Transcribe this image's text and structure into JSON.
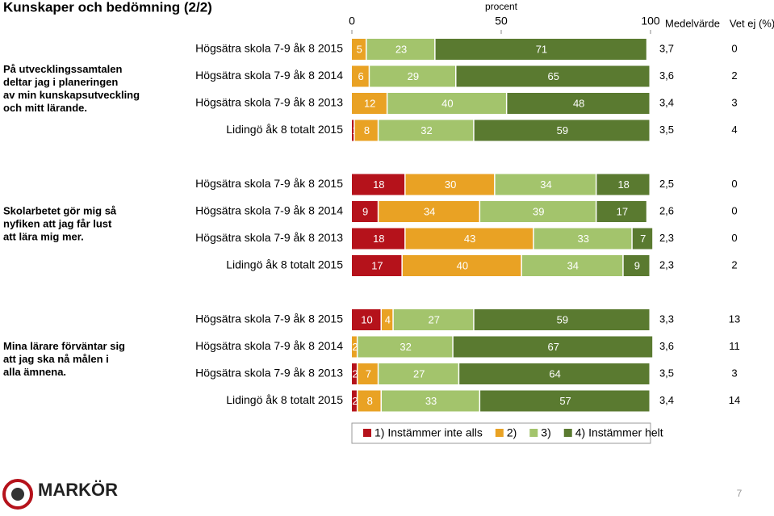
{
  "chart_data": {
    "type": "stacked-bar",
    "title": "Kunskaper och bedömning (2/2)",
    "xlabel": "procent",
    "xlim": [
      0,
      100
    ],
    "xticks": [
      0,
      50,
      100
    ],
    "mean_header": "Medelvärde",
    "unknown_header": "Vet ej (%)",
    "series": [
      {
        "name": "1) Instämmer inte alls",
        "color": "#b5121b"
      },
      {
        "name": "2)",
        "color": "#e9a224"
      },
      {
        "name": "3)",
        "color": "#a3c46c"
      },
      {
        "name": "4) Instämmer helt",
        "color": "#5a7a30"
      }
    ],
    "groups": [
      {
        "question": "På utvecklingssamtalen deltar jag i planeringen av min kunskapsutveckling och mitt lärande.",
        "categories": [
          "Högsätra skola 7-9 åk 8 2015",
          "Högsätra skola 7-9 åk 8 2014",
          "Högsätra skola 7-9 åk 8 2013",
          "Lidingö åk 8 totalt 2015"
        ],
        "values": [
          [
            0,
            5,
            23,
            71
          ],
          [
            0,
            6,
            29,
            65
          ],
          [
            0,
            12,
            40,
            48
          ],
          [
            1,
            8,
            32,
            59
          ]
        ],
        "means": [
          3.7,
          3.6,
          3.4,
          3.5
        ],
        "mean_labels": [
          "3,7",
          "3,6",
          "3,4",
          "3,5"
        ],
        "unknown": [
          0,
          2,
          3,
          4
        ]
      },
      {
        "question": "Skolarbetet gör mig så nyfiken att jag får lust att lära mig mer.",
        "categories": [
          "Högsätra skola 7-9 åk 8 2015",
          "Högsätra skola 7-9 åk 8 2014",
          "Högsätra skola 7-9 åk 8 2013",
          "Lidingö åk 8 totalt 2015"
        ],
        "values": [
          [
            18,
            30,
            34,
            18
          ],
          [
            9,
            34,
            39,
            17
          ],
          [
            18,
            43,
            33,
            7
          ],
          [
            17,
            40,
            34,
            9
          ]
        ],
        "means": [
          2.5,
          2.6,
          2.3,
          2.3
        ],
        "mean_labels": [
          "2,5",
          "2,6",
          "2,3",
          "2,3"
        ],
        "unknown": [
          0,
          0,
          0,
          2
        ]
      },
      {
        "question": "Mina lärare förväntar sig att jag ska nå målen i alla ämnena.",
        "categories": [
          "Högsätra skola 7-9 åk 8 2015",
          "Högsätra skola 7-9 åk 8 2014",
          "Högsätra skola 7-9 åk 8 2013",
          "Lidingö åk 8 totalt 2015"
        ],
        "values": [
          [
            10,
            4,
            27,
            59
          ],
          [
            0,
            2,
            32,
            67
          ],
          [
            2,
            7,
            27,
            64
          ],
          [
            2,
            8,
            33,
            57
          ]
        ],
        "means": [
          3.3,
          3.6,
          3.5,
          3.4
        ],
        "mean_labels": [
          "3,3",
          "3,6",
          "3,5",
          "3,4"
        ],
        "unknown": [
          13,
          11,
          3,
          14
        ]
      }
    ],
    "logo": "MARKÖR",
    "page_number": "7"
  }
}
